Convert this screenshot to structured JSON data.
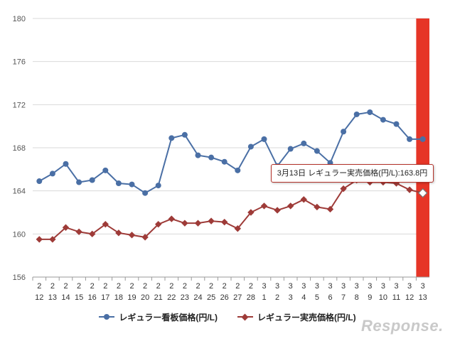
{
  "chart_data": {
    "type": "line",
    "categories": [
      {
        "top": "2",
        "bottom": "12"
      },
      {
        "top": "2",
        "bottom": "13"
      },
      {
        "top": "2",
        "bottom": "14"
      },
      {
        "top": "2",
        "bottom": "15"
      },
      {
        "top": "2",
        "bottom": "16"
      },
      {
        "top": "2",
        "bottom": "17"
      },
      {
        "top": "2",
        "bottom": "18"
      },
      {
        "top": "2",
        "bottom": "19"
      },
      {
        "top": "2",
        "bottom": "20"
      },
      {
        "top": "2",
        "bottom": "21"
      },
      {
        "top": "2",
        "bottom": "22"
      },
      {
        "top": "2",
        "bottom": "23"
      },
      {
        "top": "2",
        "bottom": "24"
      },
      {
        "top": "2",
        "bottom": "25"
      },
      {
        "top": "2",
        "bottom": "26"
      },
      {
        "top": "2",
        "bottom": "27"
      },
      {
        "top": "2",
        "bottom": "28"
      },
      {
        "top": "3",
        "bottom": "1"
      },
      {
        "top": "3",
        "bottom": "2"
      },
      {
        "top": "3",
        "bottom": "3"
      },
      {
        "top": "3",
        "bottom": "4"
      },
      {
        "top": "3",
        "bottom": "5"
      },
      {
        "top": "3",
        "bottom": "6"
      },
      {
        "top": "3",
        "bottom": "7"
      },
      {
        "top": "3",
        "bottom": "8"
      },
      {
        "top": "3",
        "bottom": "9"
      },
      {
        "top": "3",
        "bottom": "10"
      },
      {
        "top": "3",
        "bottom": "11"
      },
      {
        "top": "3",
        "bottom": "12"
      },
      {
        "top": "3",
        "bottom": "13"
      }
    ],
    "series": [
      {
        "name": "レギュラー看板価格(円/L)",
        "color": "#4a6fa5",
        "marker": "circle",
        "values": [
          164.9,
          165.6,
          166.5,
          164.8,
          165.0,
          165.9,
          164.7,
          164.6,
          163.8,
          164.5,
          168.9,
          169.2,
          167.3,
          167.1,
          166.7,
          165.9,
          168.1,
          168.8,
          166.3,
          167.9,
          168.4,
          167.7,
          166.6,
          169.5,
          171.1,
          171.3,
          170.6,
          170.2,
          168.8,
          168.8
        ]
      },
      {
        "name": "レギュラー実売価格(円/L)",
        "color": "#9e3b38",
        "marker": "diamond",
        "values": [
          159.5,
          159.5,
          160.6,
          160.2,
          160.0,
          160.9,
          160.1,
          159.9,
          159.7,
          160.9,
          161.4,
          161.0,
          161.0,
          161.2,
          161.1,
          160.5,
          162.0,
          162.6,
          162.2,
          162.6,
          163.2,
          162.5,
          162.3,
          164.2,
          165.0,
          164.8,
          164.8,
          164.7,
          164.1,
          163.8
        ]
      }
    ],
    "yticks": [
      "156",
      "160",
      "164",
      "168",
      "172",
      "176",
      "180"
    ],
    "ylim": [
      156,
      180
    ],
    "grid": true,
    "legend_position": "bottom",
    "highlight": {
      "index": 29,
      "color": "#e63527"
    },
    "tooltip": "3月13日 レギュラー実売価格(円/L):163.8円"
  },
  "watermark": "Response."
}
